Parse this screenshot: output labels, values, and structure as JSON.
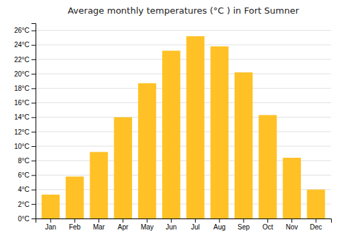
{
  "chart_data": {
    "type": "bar",
    "title": "Average monthly temperatures (°C ) in Fort Sumner",
    "categories": [
      "Jan",
      "Feb",
      "Mar",
      "Apr",
      "May",
      "Jun",
      "Jul",
      "Aug",
      "Sep",
      "Oct",
      "Nov",
      "Dec"
    ],
    "values": [
      3.3,
      5.8,
      9.2,
      14.0,
      18.7,
      23.2,
      25.2,
      23.8,
      20.2,
      14.3,
      8.4,
      4.0
    ],
    "color": "#FFC125",
    "ylim": [
      0,
      27
    ],
    "yticks": [
      {
        "value": 0,
        "label": "0°C"
      },
      {
        "value": 2,
        "label": "2°C"
      },
      {
        "value": 4,
        "label": "4°C"
      },
      {
        "value": 6,
        "label": "6°C"
      },
      {
        "value": 8,
        "label": "8°C"
      },
      {
        "value": 10,
        "label": "10°C"
      },
      {
        "value": 12,
        "label": "12°C"
      },
      {
        "value": 14,
        "label": "14°C"
      },
      {
        "value": 16,
        "label": "16°C"
      },
      {
        "value": 18,
        "label": "18°C"
      },
      {
        "value": 20,
        "label": "20°C"
      },
      {
        "value": 22,
        "label": "22°C"
      },
      {
        "value": 24,
        "label": "24°C"
      },
      {
        "value": 26,
        "label": "26°C"
      }
    ],
    "grid": true
  }
}
